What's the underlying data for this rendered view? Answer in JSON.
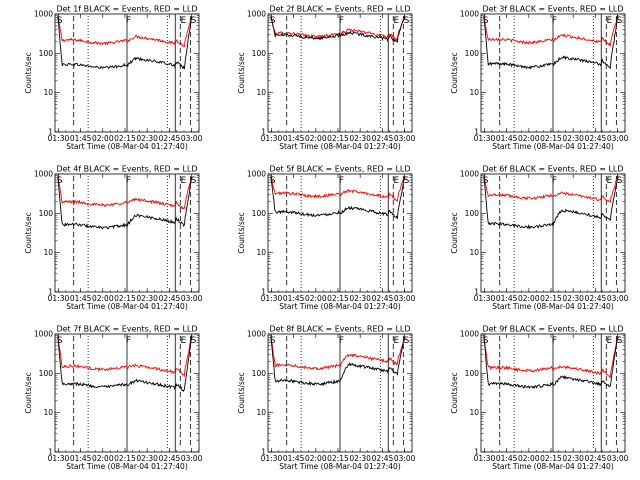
{
  "chart_data": [
    {
      "type": "line",
      "title": "Det 1f  BLACK = Events, RED = LLD",
      "xlabel": "Start Time (08-Mar-04 01:27:40)",
      "ylabel": "Counts/sec",
      "yscale": "log",
      "ylim": [
        1,
        1000
      ],
      "x_ticks": [
        "01:30",
        "01:45",
        "02:00",
        "02:15",
        "02:30",
        "02:45",
        "03:00"
      ],
      "y_ticks": [
        "1",
        "10",
        "100",
        "1000"
      ],
      "markers": [
        "S",
        "F",
        "E",
        "S"
      ],
      "series": [
        {
          "color": "#ff0000",
          "level_before": 200,
          "level_after": 270
        },
        {
          "color": "#000000",
          "level_before": 48,
          "level_after": 75
        }
      ]
    },
    {
      "type": "line",
      "title": "Det 2f  BLACK = Events, RED = LLD",
      "xlabel": "Start Time (08-Mar-04 01:27:40)",
      "ylabel": "Counts/sec",
      "yscale": "log",
      "ylim": [
        1,
        1000
      ],
      "x_ticks": [
        "01:30",
        "01:45",
        "02:00",
        "02:15",
        "02:30",
        "02:45",
        "03:00"
      ],
      "y_ticks": [
        "1",
        "10",
        "100",
        "1000"
      ],
      "markers": [
        "S",
        "F",
        "E",
        "S"
      ],
      "series": [
        {
          "color": "#ff0000",
          "level_before": 300,
          "level_after": 400
        },
        {
          "color": "#000000",
          "level_before": 270,
          "level_after": 340
        }
      ]
    },
    {
      "type": "line",
      "title": "Det 3f  BLACK = Events, RED = LLD",
      "xlabel": "Start Time (08-Mar-04 01:27:40)",
      "ylabel": "Counts/sec",
      "yscale": "log",
      "ylim": [
        1,
        1000
      ],
      "x_ticks": [
        "01:30",
        "01:45",
        "02:00",
        "02:15",
        "02:30",
        "02:45",
        "03:00"
      ],
      "y_ticks": [
        "1",
        "10",
        "100",
        "1000"
      ],
      "markers": [
        "S",
        "F",
        "E",
        "S"
      ],
      "series": [
        {
          "color": "#ff0000",
          "level_before": 210,
          "level_after": 290
        },
        {
          "color": "#000000",
          "level_before": 50,
          "level_after": 80
        }
      ]
    },
    {
      "type": "line",
      "title": "Det 4f  BLACK = Events, RED = LLD",
      "xlabel": "Start Time (08-Mar-04 01:27:40)",
      "ylabel": "Counts/sec",
      "yscale": "log",
      "ylim": [
        1,
        1000
      ],
      "x_ticks": [
        "01:30",
        "01:45",
        "02:00",
        "02:15",
        "02:30",
        "02:45",
        "03:00"
      ],
      "y_ticks": [
        "1",
        "10",
        "100",
        "1000"
      ],
      "markers": [
        "S",
        "F",
        "E",
        "S"
      ],
      "series": [
        {
          "color": "#ff0000",
          "level_before": 180,
          "level_after": 230
        },
        {
          "color": "#000000",
          "level_before": 48,
          "level_after": 90
        }
      ]
    },
    {
      "type": "line",
      "title": "Det 5f  BLACK = Events, RED = LLD",
      "xlabel": "Start Time (08-Mar-04 01:27:40)",
      "ylabel": "Counts/sec",
      "yscale": "log",
      "ylim": [
        1,
        1000
      ],
      "x_ticks": [
        "01:30",
        "01:45",
        "02:00",
        "02:15",
        "02:30",
        "02:45",
        "03:00"
      ],
      "y_ticks": [
        "1",
        "10",
        "100",
        "1000"
      ],
      "markers": [
        "S",
        "F",
        "E",
        "S"
      ],
      "series": [
        {
          "color": "#ff0000",
          "level_before": 300,
          "level_after": 380
        },
        {
          "color": "#000000",
          "level_before": 100,
          "level_after": 140
        }
      ]
    },
    {
      "type": "line",
      "title": "Det 6f  BLACK = Events, RED = LLD",
      "xlabel": "Start Time (08-Mar-04 01:27:40)",
      "ylabel": "Counts/sec",
      "yscale": "log",
      "ylim": [
        1,
        1000
      ],
      "x_ticks": [
        "01:30",
        "01:45",
        "02:00",
        "02:15",
        "02:30",
        "02:45",
        "03:00"
      ],
      "y_ticks": [
        "1",
        "10",
        "100",
        "1000"
      ],
      "markers": [
        "S",
        "F",
        "E",
        "S"
      ],
      "series": [
        {
          "color": "#ff0000",
          "level_before": 270,
          "level_after": 330
        },
        {
          "color": "#000000",
          "level_before": 50,
          "level_after": 120
        }
      ]
    },
    {
      "type": "line",
      "title": "Det 7f  BLACK = Events, RED = LLD",
      "xlabel": "Start Time (08-Mar-04 01:27:40)",
      "ylabel": "Counts/sec",
      "yscale": "log",
      "ylim": [
        1,
        1000
      ],
      "x_ticks": [
        "01:30",
        "01:45",
        "02:00",
        "02:15",
        "02:30",
        "02:45",
        "03:00"
      ],
      "y_ticks": [
        "1",
        "10",
        "100",
        "1000"
      ],
      "markers": [
        "S",
        "F",
        "E",
        "S"
      ],
      "series": [
        {
          "color": "#ff0000",
          "level_before": 140,
          "level_after": 160
        },
        {
          "color": "#000000",
          "level_before": 50,
          "level_after": 65
        }
      ]
    },
    {
      "type": "line",
      "title": "Det 8f  BLACK = Events, RED = LLD",
      "xlabel": "Start Time (08-Mar-04 01:27:40)",
      "ylabel": "Counts/sec",
      "yscale": "log",
      "ylim": [
        1,
        1000
      ],
      "x_ticks": [
        "01:30",
        "01:45",
        "02:00",
        "02:15",
        "02:30",
        "02:45",
        "03:00"
      ],
      "y_ticks": [
        "1",
        "10",
        "100",
        "1000"
      ],
      "markers": [
        "S",
        "F",
        "E",
        "S"
      ],
      "series": [
        {
          "color": "#ff0000",
          "level_before": 150,
          "level_after": 300
        },
        {
          "color": "#000000",
          "level_before": 60,
          "level_after": 170
        }
      ]
    },
    {
      "type": "line",
      "title": "Det 9f  BLACK = Events, RED = LLD",
      "xlabel": "Start Time (08-Mar-04 01:27:40)",
      "ylabel": "Counts/sec",
      "yscale": "log",
      "ylim": [
        1,
        1000
      ],
      "x_ticks": [
        "01:30",
        "01:45",
        "02:00",
        "02:15",
        "02:30",
        "02:45",
        "03:00"
      ],
      "y_ticks": [
        "1",
        "10",
        "100",
        "1000"
      ],
      "markers": [
        "S",
        "F",
        "E",
        "S"
      ],
      "series": [
        {
          "color": "#ff0000",
          "level_before": 130,
          "level_after": 150
        },
        {
          "color": "#000000",
          "level_before": 50,
          "level_after": 80
        }
      ]
    }
  ]
}
